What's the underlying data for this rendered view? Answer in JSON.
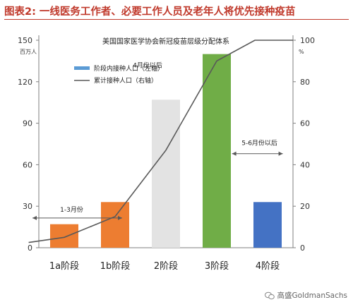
{
  "header": {
    "title": "图表2: 一线医务工作者、必要工作人员及老年人将优先接种疫苗"
  },
  "watermark": {
    "text": "高盛GoldmanSachs",
    "icon": "wechat-icon"
  },
  "chart_data": {
    "type": "bar",
    "title": "美国国家医学协会新冠疫苗层级分配体系",
    "categories": [
      "1a阶段",
      "1b阶段",
      "2阶段",
      "3阶段",
      "4阶段"
    ],
    "left_axis": {
      "unit": "百万人",
      "ylim": [
        0,
        150
      ],
      "ticks": [
        0,
        30,
        60,
        90,
        120,
        150
      ]
    },
    "right_axis": {
      "unit": "%",
      "ylim": [
        0,
        100
      ],
      "ticks": [
        0,
        20,
        40,
        60,
        80,
        100
      ]
    },
    "series": [
      {
        "name": "阶段内接种人口（左轴）",
        "type": "bar",
        "axis": "left",
        "values": [
          17,
          33,
          107,
          140,
          33
        ],
        "colors": [
          "#ed7d31",
          "#ed7d31",
          "#e3e3e3",
          "#70ad47",
          "#4472c4"
        ]
      },
      {
        "name": "累计接种人口（右轴）",
        "type": "line",
        "axis": "right",
        "color": "#595959",
        "points": [
          {
            "x": -0.7,
            "y": 2.5
          },
          {
            "x": 0,
            "y": 5
          },
          {
            "x": 1,
            "y": 15
          },
          {
            "x": 2,
            "y": 47
          },
          {
            "x": 3,
            "y": 90
          },
          {
            "x": 3.75,
            "y": 100
          },
          {
            "x": 4.5,
            "y": 100
          }
        ]
      }
    ],
    "legend_color": "#5b9bd5",
    "legend_position": "top-left",
    "annotations": {
      "a1": {
        "text": "1-3月份",
        "from": 0,
        "to": 1,
        "y": 21.5
      },
      "a2": {
        "text": "4月份以后",
        "at": 2,
        "y": 132
      },
      "a3": {
        "text": "5-6月份以后",
        "from": 3.3,
        "to": 4.3,
        "y": 68
      }
    },
    "grid": false
  }
}
